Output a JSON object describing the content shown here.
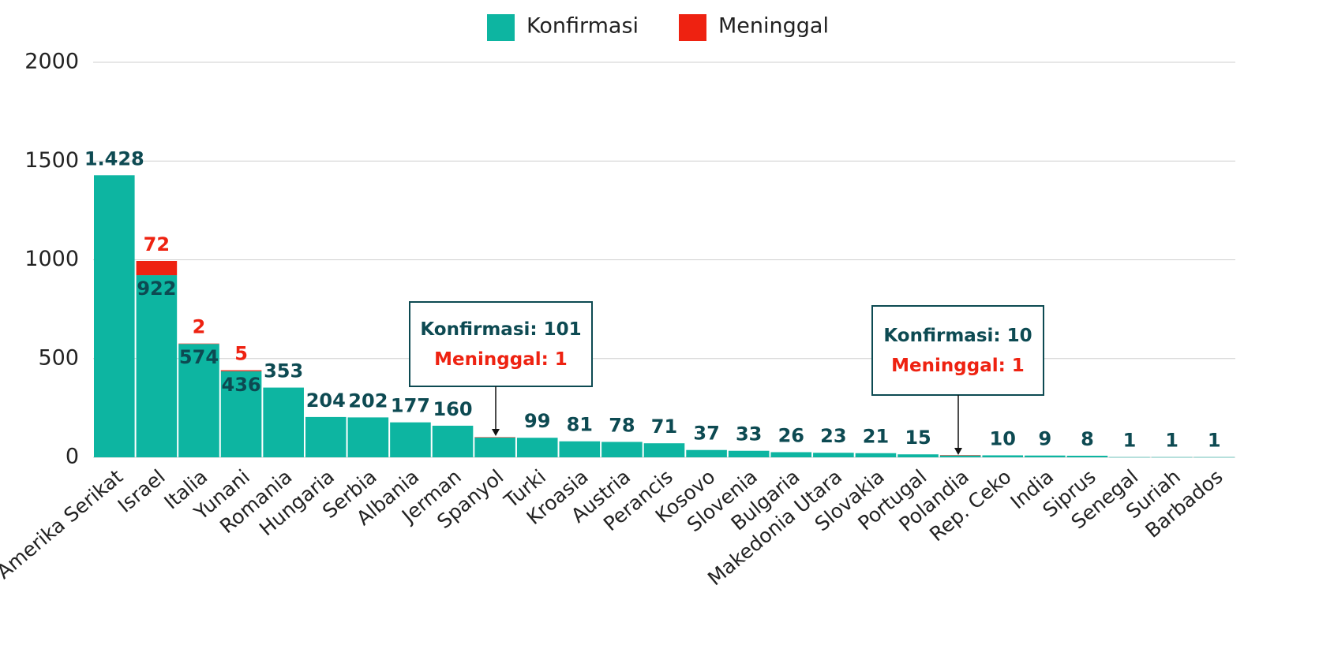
{
  "chart_data": {
    "type": "stacked_bar",
    "categories": [
      "Amerika Serikat",
      "Israel",
      "Italia",
      "Yunani",
      "Romania",
      "Hungaria",
      "Serbia",
      "Albania",
      "Jerman",
      "Spanyol",
      "Turki",
      "Kroasia",
      "Austria",
      "Perancis",
      "Kosovo",
      "Slovenia",
      "Bulgaria",
      "Makedonia Utara",
      "Slovakia",
      "Portugal",
      "Polandia",
      "Rep. Ceko",
      "India",
      "Siprus",
      "Senegal",
      "Suriah",
      "Barbados"
    ],
    "series": [
      {
        "name": "Konfirmasi",
        "color": "#0db5a1",
        "values": [
          1428,
          922,
          574,
          436,
          353,
          204,
          202,
          177,
          160,
          101,
          99,
          81,
          78,
          71,
          37,
          33,
          26,
          23,
          21,
          15,
          10,
          10,
          9,
          8,
          1,
          1,
          1
        ],
        "value_labels": [
          "1.428",
          "922",
          "574",
          "436",
          "353",
          "204",
          "202",
          "177",
          "160",
          null,
          "99",
          "81",
          "78",
          "71",
          "37",
          "33",
          "26",
          "23",
          "21",
          "15",
          null,
          "10",
          "9",
          "8",
          "1",
          "1",
          "1"
        ]
      },
      {
        "name": "Meninggal",
        "color": "#ee2211",
        "values": [
          null,
          72,
          2,
          5,
          null,
          null,
          null,
          null,
          null,
          1,
          null,
          null,
          null,
          null,
          null,
          null,
          null,
          null,
          null,
          null,
          1,
          null,
          null,
          null,
          null,
          null,
          null
        ],
        "value_labels": [
          null,
          "72",
          "2",
          "5",
          null,
          null,
          null,
          null,
          null,
          null,
          null,
          null,
          null,
          null,
          null,
          null,
          null,
          null,
          null,
          null,
          null,
          null,
          null,
          null,
          null,
          null,
          null
        ]
      }
    ],
    "ylim": [
      0,
      2000
    ],
    "yticks": [
      0,
      500,
      1000,
      1500,
      2000
    ],
    "grid": true,
    "annotations": [
      {
        "lines": [
          "Konfirmasi: 101",
          "Meninggal: 1"
        ]
      },
      {
        "lines": [
          "Konfirmasi: 10",
          "Meninggal: 1"
        ]
      }
    ]
  }
}
